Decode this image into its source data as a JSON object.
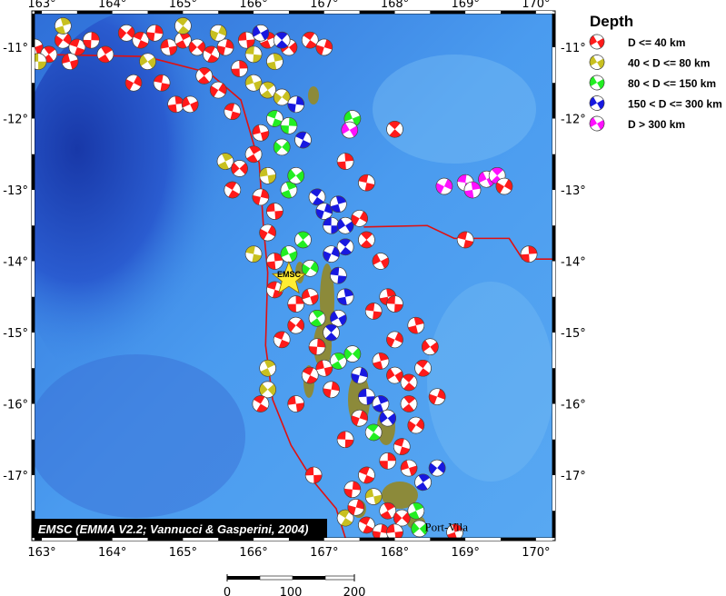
{
  "map": {
    "lon_range": [
      162.9,
      170.25
    ],
    "lat_range": [
      -17.88,
      -10.6
    ],
    "lon_ticks": [
      163,
      164,
      165,
      166,
      167,
      168,
      169,
      170
    ],
    "lat_ticks": [
      -11,
      -12,
      -13,
      -14,
      -15,
      -16,
      -17
    ],
    "lon_labels": [
      "163°",
      "164°",
      "165°",
      "166°",
      "167°",
      "168°",
      "169°",
      "170°"
    ],
    "lat_labels": [
      "-11°",
      "-12°",
      "-13°",
      "-14°",
      "-15°",
      "-16°",
      "-17°"
    ],
    "colors": {
      "ocean_deep": "#1f3fae",
      "ocean": "#3f8ee8",
      "ocean_light": "#7ec0f5",
      "land": "#8c8a3a",
      "plate_boundary": "#e01010"
    },
    "plate_boundary": [
      [
        [
          162.9,
          -11.1
        ],
        [
          164.47,
          -11.13
        ],
        [
          165.37,
          -11.36
        ],
        [
          165.82,
          -11.74
        ],
        [
          166.08,
          -12.63
        ],
        [
          166.14,
          -13.52
        ],
        [
          166.2,
          -14.16
        ],
        [
          166.17,
          -15.18
        ],
        [
          166.27,
          -15.94
        ],
        [
          166.53,
          -16.58
        ],
        [
          166.85,
          -17.09
        ],
        [
          167.17,
          -17.47
        ],
        [
          167.3,
          -17.88
        ]
      ],
      [
        [
          167.56,
          -13.52
        ],
        [
          168.46,
          -13.5
        ],
        [
          168.84,
          -13.68
        ],
        [
          169.62,
          -13.68
        ],
        [
          169.81,
          -13.97
        ],
        [
          170.25,
          -13.97
        ]
      ]
    ],
    "star": {
      "label": "EMSC",
      "lon": 166.5,
      "lat": -14.25,
      "color": "#ffee33"
    },
    "city": {
      "label": "Port-Vila",
      "lon": 168.32,
      "lat": -17.73
    },
    "attribution": "EMSC (EMMA V2.2; Vannucci & Gasperini, 2004)",
    "events": [
      [
        162.9,
        -11.0,
        1
      ],
      [
        163.1,
        -11.1,
        1
      ],
      [
        163.3,
        -10.9,
        1
      ],
      [
        163.5,
        -11.0,
        1
      ],
      [
        163.7,
        -10.9,
        1
      ],
      [
        163.4,
        -11.2,
        1
      ],
      [
        163.9,
        -11.1,
        1
      ],
      [
        164.2,
        -10.8,
        1
      ],
      [
        164.4,
        -10.9,
        1
      ],
      [
        164.6,
        -10.8,
        1
      ],
      [
        164.8,
        -11.0,
        1
      ],
      [
        165.0,
        -10.9,
        1
      ],
      [
        165.2,
        -11.0,
        1
      ],
      [
        165.4,
        -11.1,
        1
      ],
      [
        165.6,
        -11.0,
        1
      ],
      [
        165.9,
        -10.9,
        1
      ],
      [
        166.2,
        -10.9,
        1
      ],
      [
        166.5,
        -11.0,
        1
      ],
      [
        166.8,
        -10.9,
        1
      ],
      [
        167.0,
        -11.0,
        1
      ],
      [
        162.95,
        -11.2,
        2
      ],
      [
        163.3,
        -10.7,
        2
      ],
      [
        164.5,
        -11.2,
        2
      ],
      [
        165.0,
        -10.7,
        2
      ],
      [
        165.5,
        -10.8,
        2
      ],
      [
        166.0,
        -11.1,
        2
      ],
      [
        166.3,
        -11.2,
        2
      ],
      [
        166.1,
        -10.8,
        4
      ],
      [
        166.4,
        -10.9,
        4
      ],
      [
        164.3,
        -11.5,
        1
      ],
      [
        164.7,
        -11.5,
        1
      ],
      [
        164.9,
        -11.8,
        1
      ],
      [
        165.1,
        -11.8,
        1
      ],
      [
        165.3,
        -11.4,
        1
      ],
      [
        165.5,
        -11.6,
        1
      ],
      [
        165.7,
        -11.9,
        1
      ],
      [
        165.8,
        -11.3,
        1
      ],
      [
        166.0,
        -11.5,
        2
      ],
      [
        166.2,
        -11.6,
        2
      ],
      [
        166.4,
        -11.7,
        2
      ],
      [
        166.3,
        -12.0,
        3
      ],
      [
        166.5,
        -12.1,
        3
      ],
      [
        166.1,
        -12.2,
        1
      ],
      [
        166.0,
        -12.5,
        1
      ],
      [
        166.4,
        -12.4,
        3
      ],
      [
        166.7,
        -12.3,
        4
      ],
      [
        166.6,
        -11.8,
        4
      ],
      [
        166.2,
        -12.8,
        2
      ],
      [
        165.6,
        -12.6,
        2
      ],
      [
        165.8,
        -12.7,
        1
      ],
      [
        165.7,
        -13.0,
        1
      ],
      [
        166.1,
        -13.1,
        1
      ],
      [
        166.3,
        -13.3,
        1
      ],
      [
        166.5,
        -13.0,
        3
      ],
      [
        166.6,
        -12.8,
        3
      ],
      [
        166.9,
        -13.1,
        4
      ],
      [
        167.0,
        -13.3,
        4
      ],
      [
        167.1,
        -13.5,
        4
      ],
      [
        167.2,
        -13.2,
        4
      ],
      [
        167.3,
        -13.5,
        4
      ],
      [
        167.3,
        -13.8,
        4
      ],
      [
        167.1,
        -13.9,
        4
      ],
      [
        167.2,
        -14.2,
        4
      ],
      [
        167.3,
        -14.5,
        4
      ],
      [
        167.2,
        -14.8,
        4
      ],
      [
        167.1,
        -15.0,
        4
      ],
      [
        166.2,
        -13.6,
        1
      ],
      [
        166.0,
        -13.9,
        2
      ],
      [
        166.3,
        -14.0,
        1
      ],
      [
        166.5,
        -13.9,
        3
      ],
      [
        166.7,
        -13.7,
        3
      ],
      [
        166.8,
        -14.1,
        3
      ],
      [
        166.3,
        -14.4,
        1
      ],
      [
        166.6,
        -14.6,
        1
      ],
      [
        166.8,
        -14.5,
        1
      ],
      [
        166.9,
        -14.8,
        3
      ],
      [
        166.6,
        -14.9,
        1
      ],
      [
        166.4,
        -15.1,
        1
      ],
      [
        166.9,
        -15.2,
        1
      ],
      [
        167.0,
        -15.5,
        1
      ],
      [
        167.2,
        -15.4,
        3
      ],
      [
        167.4,
        -15.3,
        3
      ],
      [
        166.8,
        -15.6,
        1
      ],
      [
        167.1,
        -15.8,
        1
      ],
      [
        166.6,
        -16.0,
        1
      ],
      [
        166.2,
        -15.5,
        2
      ],
      [
        166.2,
        -15.8,
        2
      ],
      [
        166.1,
        -16.0,
        1
      ],
      [
        167.5,
        -15.6,
        4
      ],
      [
        167.6,
        -15.9,
        4
      ],
      [
        167.8,
        -16.0,
        4
      ],
      [
        167.9,
        -16.2,
        4
      ],
      [
        167.7,
        -16.4,
        3
      ],
      [
        167.5,
        -16.2,
        1
      ],
      [
        167.3,
        -16.5,
        1
      ],
      [
        167.8,
        -15.4,
        1
      ],
      [
        168.0,
        -15.6,
        1
      ],
      [
        168.2,
        -15.7,
        1
      ],
      [
        168.0,
        -15.1,
        1
      ],
      [
        167.7,
        -14.7,
        1
      ],
      [
        167.9,
        -14.5,
        1
      ],
      [
        167.8,
        -14.0,
        1
      ],
      [
        167.6,
        -13.7,
        1
      ],
      [
        167.5,
        -13.4,
        1
      ],
      [
        167.6,
        -12.9,
        1
      ],
      [
        167.3,
        -12.6,
        1
      ],
      [
        167.4,
        -12.0,
        3
      ],
      [
        168.2,
        -16.0,
        1
      ],
      [
        168.3,
        -16.3,
        1
      ],
      [
        168.1,
        -16.6,
        1
      ],
      [
        167.9,
        -16.8,
        1
      ],
      [
        168.2,
        -16.9,
        1
      ],
      [
        168.4,
        -17.1,
        4
      ],
      [
        168.6,
        -16.9,
        4
      ],
      [
        167.6,
        -17.0,
        1
      ],
      [
        167.4,
        -17.2,
        1
      ],
      [
        167.7,
        -17.3,
        2
      ],
      [
        167.9,
        -17.5,
        1
      ],
      [
        168.1,
        -17.6,
        1
      ],
      [
        167.6,
        -17.7,
        1
      ],
      [
        167.8,
        -17.8,
        1
      ],
      [
        168.0,
        -17.8,
        1
      ],
      [
        168.3,
        -17.5,
        3
      ],
      [
        168.35,
        -17.75,
        3
      ],
      [
        167.3,
        -17.6,
        2
      ],
      [
        167.45,
        -17.45,
        1
      ],
      [
        166.85,
        -17.0,
        1
      ],
      [
        168.85,
        -17.8,
        1
      ],
      [
        168.5,
        -15.2,
        1
      ],
      [
        168.4,
        -15.5,
        1
      ],
      [
        168.6,
        -15.9,
        1
      ],
      [
        168.0,
        -14.6,
        1
      ],
      [
        168.3,
        -14.9,
        1
      ],
      [
        167.36,
        -12.16,
        5
      ],
      [
        168.0,
        -12.15,
        1
      ],
      [
        168.7,
        -12.95,
        5
      ],
      [
        169.0,
        -12.9,
        5
      ],
      [
        169.1,
        -13.0,
        5
      ],
      [
        169.3,
        -12.85,
        5
      ],
      [
        169.45,
        -12.8,
        5
      ],
      [
        169.55,
        -12.95,
        1
      ],
      [
        169.0,
        -13.7,
        1
      ],
      [
        169.9,
        -13.9,
        1
      ]
    ]
  },
  "legend": {
    "title": "Depth",
    "items": [
      {
        "label": "D <= 40 km",
        "color": "#ff1a1a"
      },
      {
        "label": "40 < D <= 80 km",
        "color": "#c8c020"
      },
      {
        "label": "80 < D <= 150 km",
        "color": "#22ee22"
      },
      {
        "label": "150 < D <= 300 km",
        "color": "#1818e0"
      },
      {
        "label": "D > 300 km",
        "color": "#ff10ff"
      }
    ]
  },
  "scale_bar": {
    "labels": [
      "0",
      "100",
      "200"
    ]
  }
}
